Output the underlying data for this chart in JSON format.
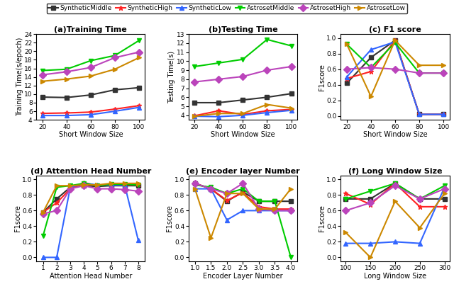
{
  "legend_labels": [
    "SyntheticMiddle",
    "SyntheticHigh",
    "SyntheticLow",
    "AstrosetMiddle",
    "AstrosetHigh",
    "AstrosetLow"
  ],
  "legend_colors": [
    "#333333",
    "#ff2222",
    "#3366ff",
    "#00cc00",
    "#bb44bb",
    "#cc8800"
  ],
  "legend_markers": [
    "s",
    "*",
    "^",
    "v",
    "D",
    ">"
  ],
  "short_window": [
    20,
    40,
    60,
    80,
    100
  ],
  "train_time": {
    "SyntheticMiddle": [
      9.3,
      9.2,
      9.8,
      11.0,
      11.5
    ],
    "SyntheticHigh": [
      5.5,
      5.6,
      5.8,
      6.5,
      7.3
    ],
    "SyntheticLow": [
      5.0,
      5.0,
      5.2,
      6.0,
      6.9
    ],
    "AstrosetMiddle": [
      15.5,
      15.8,
      17.8,
      19.0,
      22.5
    ],
    "AstrosetHigh": [
      14.5,
      15.2,
      16.2,
      18.5,
      19.8
    ],
    "AstrosetLow": [
      13.0,
      13.5,
      14.2,
      15.8,
      18.5
    ]
  },
  "train_ylim": [
    4,
    24
  ],
  "train_yticks": [
    4,
    6,
    8,
    10,
    12,
    14,
    16,
    18,
    20,
    22,
    24
  ],
  "test_time": {
    "SyntheticMiddle": [
      5.4,
      5.4,
      5.7,
      6.0,
      6.4
    ],
    "SyntheticHigh": [
      3.95,
      4.5,
      4.1,
      4.5,
      4.65
    ],
    "SyntheticLow": [
      3.9,
      3.85,
      4.0,
      4.3,
      4.55
    ],
    "AstrosetMiddle": [
      9.4,
      9.8,
      10.2,
      12.4,
      11.7
    ],
    "AstrosetHigh": [
      7.7,
      8.0,
      8.3,
      9.0,
      9.4
    ],
    "AstrosetLow": [
      3.9,
      4.2,
      4.2,
      5.2,
      4.8
    ]
  },
  "test_ylim": [
    3.5,
    13
  ],
  "test_yticks": [
    4,
    5,
    6,
    7,
    8,
    9,
    10,
    11,
    12,
    13
  ],
  "f1_short": {
    "SyntheticMiddle": [
      0.42,
      0.75,
      0.97,
      0.02,
      0.02
    ],
    "SyntheticHigh": [
      0.48,
      0.57,
      0.97,
      0.02,
      0.02
    ],
    "SyntheticLow": [
      0.5,
      0.85,
      0.95,
      0.02,
      0.02
    ],
    "AstrosetMiddle": [
      0.92,
      0.62,
      0.94,
      0.55,
      0.55
    ],
    "AstrosetHigh": [
      0.6,
      0.62,
      0.6,
      0.55,
      0.55
    ],
    "AstrosetLow": [
      0.92,
      0.25,
      0.97,
      0.65,
      0.65
    ]
  },
  "f1_short_ylim": [
    -0.05,
    1.05
  ],
  "attention_heads": [
    1,
    2,
    3,
    4,
    5,
    6,
    7,
    8
  ],
  "f1_attention": {
    "SyntheticMiddle": [
      0.58,
      0.75,
      0.9,
      0.92,
      0.91,
      0.92,
      0.92,
      0.92
    ],
    "SyntheticHigh": [
      0.58,
      0.7,
      0.88,
      0.96,
      0.92,
      0.94,
      0.93,
      0.94
    ],
    "SyntheticLow": [
      0.0,
      0.0,
      0.9,
      0.95,
      0.93,
      0.93,
      0.93,
      0.22
    ],
    "AstrosetMiddle": [
      0.28,
      0.9,
      0.92,
      0.95,
      0.92,
      0.94,
      0.94,
      0.93
    ],
    "AstrosetHigh": [
      0.56,
      0.6,
      0.88,
      0.92,
      0.88,
      0.88,
      0.87,
      0.85
    ],
    "AstrosetLow": [
      0.58,
      0.92,
      0.92,
      0.93,
      0.93,
      0.95,
      0.95,
      0.95
    ]
  },
  "f1_attention_ylim": [
    -0.05,
    1.05
  ],
  "encoder_layers": [
    1.0,
    1.5,
    2.0,
    2.5,
    3.0,
    3.5,
    4.0
  ],
  "f1_encoder": {
    "SyntheticMiddle": [
      0.95,
      0.88,
      0.72,
      0.84,
      0.72,
      0.72,
      0.72
    ],
    "SyntheticHigh": [
      0.95,
      0.88,
      0.73,
      0.83,
      0.65,
      0.62,
      0.62
    ],
    "SyntheticLow": [
      0.88,
      0.88,
      0.48,
      0.6,
      0.6,
      0.6,
      0.6
    ],
    "AstrosetMiddle": [
      0.93,
      0.9,
      0.82,
      0.88,
      0.72,
      0.72,
      0.0
    ],
    "AstrosetHigh": [
      0.95,
      0.88,
      0.82,
      0.95,
      0.62,
      0.6,
      0.6
    ],
    "AstrosetLow": [
      0.88,
      0.25,
      0.82,
      0.82,
      0.62,
      0.62,
      0.88
    ]
  },
  "f1_encoder_ylim": [
    -0.05,
    1.05
  ],
  "long_window": [
    100,
    150,
    200,
    250,
    300
  ],
  "f1_long": {
    "SyntheticMiddle": [
      0.75,
      0.75,
      0.95,
      0.75,
      0.75
    ],
    "SyntheticHigh": [
      0.82,
      0.68,
      0.95,
      0.65,
      0.65
    ],
    "SyntheticLow": [
      0.18,
      0.18,
      0.2,
      0.18,
      0.9
    ],
    "AstrosetMiddle": [
      0.75,
      0.85,
      0.95,
      0.75,
      0.92
    ],
    "AstrosetHigh": [
      0.6,
      0.7,
      0.92,
      0.75,
      0.88
    ],
    "AstrosetLow": [
      0.32,
      0.0,
      0.72,
      0.38,
      0.82
    ]
  },
  "f1_long_ylim": [
    -0.05,
    1.05
  ]
}
